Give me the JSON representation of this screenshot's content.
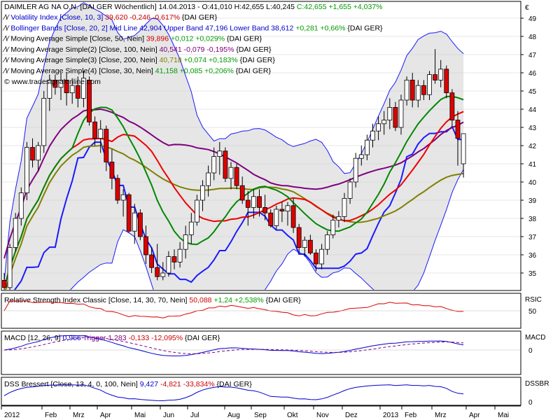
{
  "header": {
    "title": "DAIMLER AG NA O.N. [DAI GER  Wöchentlich]",
    "date": "14.04.2013",
    "ohlc_black": "- O:41,010 H:42,655 L:40,245",
    "ohlc_green": "C:42,655 +1,655 +4,037%",
    "currency": "€"
  },
  "legend": [
    {
      "name": "Volatility Index [Close, 10, 3]",
      "value": "39,620 -0,246 -0,617%",
      "suffix": "{DAI GER}",
      "color": "#0000cc",
      "valcolor": "#cc0000"
    },
    {
      "name": "Bollinger Bands [Close, 20, 2]",
      "value": "Mid Line 42,904 Upper Band 47,196 Lower Band 38,612",
      "value2": "+0,281 +0,66%",
      "suffix": "{DAI GER}",
      "color": "#0000cc",
      "valcolor": "#0000cc",
      "val2color": "#009900"
    },
    {
      "name": "Moving Average Simple [Close, 50, Nein]",
      "value": "39,896",
      "value2": "+0,012 +0,029%",
      "suffix": "{DAI GER}",
      "color": "#000000",
      "valcolor": "#cc0000",
      "val2color": "#009900"
    },
    {
      "name": "Moving Average Simple(2) [Close, 100, Nein]",
      "value": "40,541 -0,079 -0,195%",
      "suffix": "{DAI GER}",
      "color": "#000000",
      "valcolor": "#800080"
    },
    {
      "name": "Moving Average Simple(3) [Close, 200, Nein]",
      "value": "40,718",
      "value2": "+0,074 +0,183%",
      "suffix": "{DAI GER}",
      "color": "#000000",
      "valcolor": "#808000",
      "val2color": "#009900"
    },
    {
      "name": "Moving Average Simple(4) [Close, 30, Nein]",
      "value": "41,158",
      "value2": "+0,085 +0,206%",
      "suffix": "{DAI GER}",
      "color": "#000000",
      "valcolor": "#009900",
      "val2color": "#009900"
    }
  ],
  "watermark": "© www.tradesignalonline.com",
  "panels": {
    "rsi": {
      "label": "Relative Strength Index Classic [Close, 14, 30, 70, Nein]",
      "value": "50,088",
      "value2": "+1,24 +2,538%",
      "suffix": "{DAI GER}",
      "axis_title": "RSIC",
      "tick": "50"
    },
    "macd": {
      "label": "MACD [12, 26, 9]",
      "value": "0,966",
      "trigger": "Trigger 1,283",
      "value2": "-0,133 -12,095%",
      "suffix": "{DAI GER}",
      "axis_title": "MACD",
      "tick": "0"
    },
    "dss": {
      "label": "DSS Bressert [Close, 13, 4, 0, 100, Nein]",
      "value": "9,427",
      "value2": "-4,821 -33,834%",
      "suffix": "{DAI GER}",
      "axis_title": "DSSBR",
      "tick": "0"
    }
  },
  "chart_data": {
    "type": "candlestick",
    "y_axis_ticks": [
      35,
      36,
      37,
      38,
      39,
      40,
      41,
      42,
      43,
      44,
      45,
      46,
      47,
      48,
      49
    ],
    "ylim": [
      34.4,
      49.5
    ],
    "x_axis_labels": [
      "2012",
      "Feb",
      "Mrz",
      "Apr",
      "Mai",
      "Jun",
      "Jul",
      "Aug",
      "Sep",
      "Okt",
      "Nov",
      "Dez",
      "2013",
      "Feb",
      "Mrz",
      "Apr",
      "Mai"
    ],
    "candles": [
      [
        34.6,
        35.0,
        33.8,
        34.2
      ],
      [
        34.2,
        36.6,
        34.0,
        36.4
      ],
      [
        36.4,
        38.3,
        36.2,
        38.0
      ],
      [
        38.0,
        39.7,
        37.6,
        39.4
      ],
      [
        39.4,
        42.2,
        39.0,
        41.9
      ],
      [
        41.9,
        42.4,
        40.8,
        41.2
      ],
      [
        41.2,
        42.2,
        40.6,
        42.0
      ],
      [
        42.0,
        45.0,
        41.6,
        44.6
      ],
      [
        44.6,
        45.9,
        43.9,
        45.6
      ],
      [
        45.6,
        45.9,
        44.8,
        45.2
      ],
      [
        45.2,
        46.0,
        44.5,
        45.6
      ],
      [
        45.6,
        46.0,
        44.2,
        44.9
      ],
      [
        44.9,
        45.7,
        44.3,
        45.3
      ],
      [
        45.3,
        45.8,
        44.1,
        44.6
      ],
      [
        44.6,
        46.1,
        44.1,
        45.7
      ],
      [
        45.6,
        45.8,
        43.1,
        43.3
      ],
      [
        43.3,
        43.6,
        42.0,
        42.4
      ],
      [
        42.4,
        43.4,
        41.6,
        42.9
      ],
      [
        42.9,
        43.1,
        40.6,
        41.1
      ],
      [
        41.1,
        41.8,
        39.6,
        40.2
      ],
      [
        40.2,
        40.4,
        38.8,
        39.0
      ],
      [
        39.0,
        39.6,
        38.1,
        39.3
      ],
      [
        39.3,
        39.4,
        37.2,
        37.3
      ],
      [
        37.3,
        38.8,
        36.6,
        38.3
      ],
      [
        38.3,
        38.5,
        36.8,
        37.0
      ],
      [
        37.0,
        37.6,
        35.5,
        36.0
      ],
      [
        36.0,
        36.4,
        35.0,
        35.3
      ],
      [
        35.3,
        36.6,
        34.6,
        34.8
      ],
      [
        34.8,
        35.6,
        34.6,
        35.0
      ],
      [
        35.0,
        36.2,
        34.8,
        35.9
      ],
      [
        35.9,
        36.3,
        35.2,
        35.6
      ],
      [
        35.6,
        36.7,
        35.3,
        36.3
      ],
      [
        36.3,
        37.6,
        35.8,
        37.1
      ],
      [
        37.1,
        38.3,
        36.6,
        37.8
      ],
      [
        37.8,
        39.3,
        37.6,
        39.0
      ],
      [
        39.0,
        40.1,
        38.4,
        39.8
      ],
      [
        39.8,
        40.9,
        39.2,
        40.5
      ],
      [
        40.5,
        41.9,
        40.1,
        41.4
      ],
      [
        41.4,
        42.2,
        40.4,
        41.7
      ],
      [
        41.7,
        41.9,
        40.0,
        40.2
      ],
      [
        40.2,
        41.1,
        39.6,
        40.8
      ],
      [
        40.8,
        41.0,
        39.6,
        39.8
      ],
      [
        39.8,
        40.3,
        38.8,
        39.0
      ],
      [
        39.0,
        39.5,
        37.6,
        38.6
      ],
      [
        38.6,
        39.6,
        38.0,
        39.2
      ],
      [
        39.2,
        39.6,
        38.1,
        38.6
      ],
      [
        38.6,
        39.3,
        37.9,
        38.3
      ],
      [
        38.3,
        38.5,
        37.5,
        37.6
      ],
      [
        37.6,
        38.7,
        37.4,
        38.5
      ],
      [
        38.5,
        38.9,
        37.8,
        38.4
      ],
      [
        38.4,
        38.9,
        37.6,
        38.7
      ],
      [
        38.7,
        39.1,
        37.2,
        37.5
      ],
      [
        37.5,
        37.7,
        36.1,
        36.4
      ],
      [
        36.4,
        37.0,
        35.9,
        36.8
      ],
      [
        36.8,
        37.1,
        36.0,
        36.1
      ],
      [
        36.1,
        36.3,
        35.1,
        35.5
      ],
      [
        35.5,
        36.6,
        35.2,
        36.3
      ],
      [
        36.3,
        37.3,
        36.0,
        37.1
      ],
      [
        37.1,
        38.2,
        36.9,
        37.9
      ],
      [
        37.9,
        38.4,
        37.5,
        38.1
      ],
      [
        38.1,
        39.4,
        37.8,
        39.1
      ],
      [
        39.1,
        40.2,
        38.8,
        40.0
      ],
      [
        40.0,
        41.6,
        39.7,
        41.3
      ],
      [
        41.3,
        42.0,
        40.9,
        41.5
      ],
      [
        41.5,
        42.6,
        41.2,
        42.3
      ],
      [
        42.3,
        43.2,
        41.9,
        42.8
      ],
      [
        42.8,
        43.6,
        42.3,
        43.2
      ],
      [
        43.2,
        43.9,
        42.6,
        43.4
      ],
      [
        43.4,
        44.6,
        42.9,
        44.1
      ],
      [
        44.1,
        44.4,
        42.8,
        43.0
      ],
      [
        43.0,
        44.8,
        42.6,
        44.5
      ],
      [
        44.5,
        45.8,
        44.2,
        45.6
      ],
      [
        45.6,
        46.0,
        44.1,
        44.5
      ],
      [
        44.5,
        45.6,
        44.1,
        45.3
      ],
      [
        45.3,
        45.6,
        44.5,
        44.8
      ],
      [
        44.8,
        46.1,
        44.5,
        45.9
      ],
      [
        45.9,
        47.3,
        45.4,
        45.6
      ],
      [
        45.6,
        46.7,
        45.2,
        46.2
      ],
      [
        46.2,
        46.4,
        44.6,
        44.9
      ],
      [
        44.9,
        45.1,
        43.0,
        43.4
      ],
      [
        43.4,
        43.9,
        40.9,
        42.4
      ],
      [
        41.0,
        42.655,
        40.245,
        42.655
      ]
    ]
  }
}
